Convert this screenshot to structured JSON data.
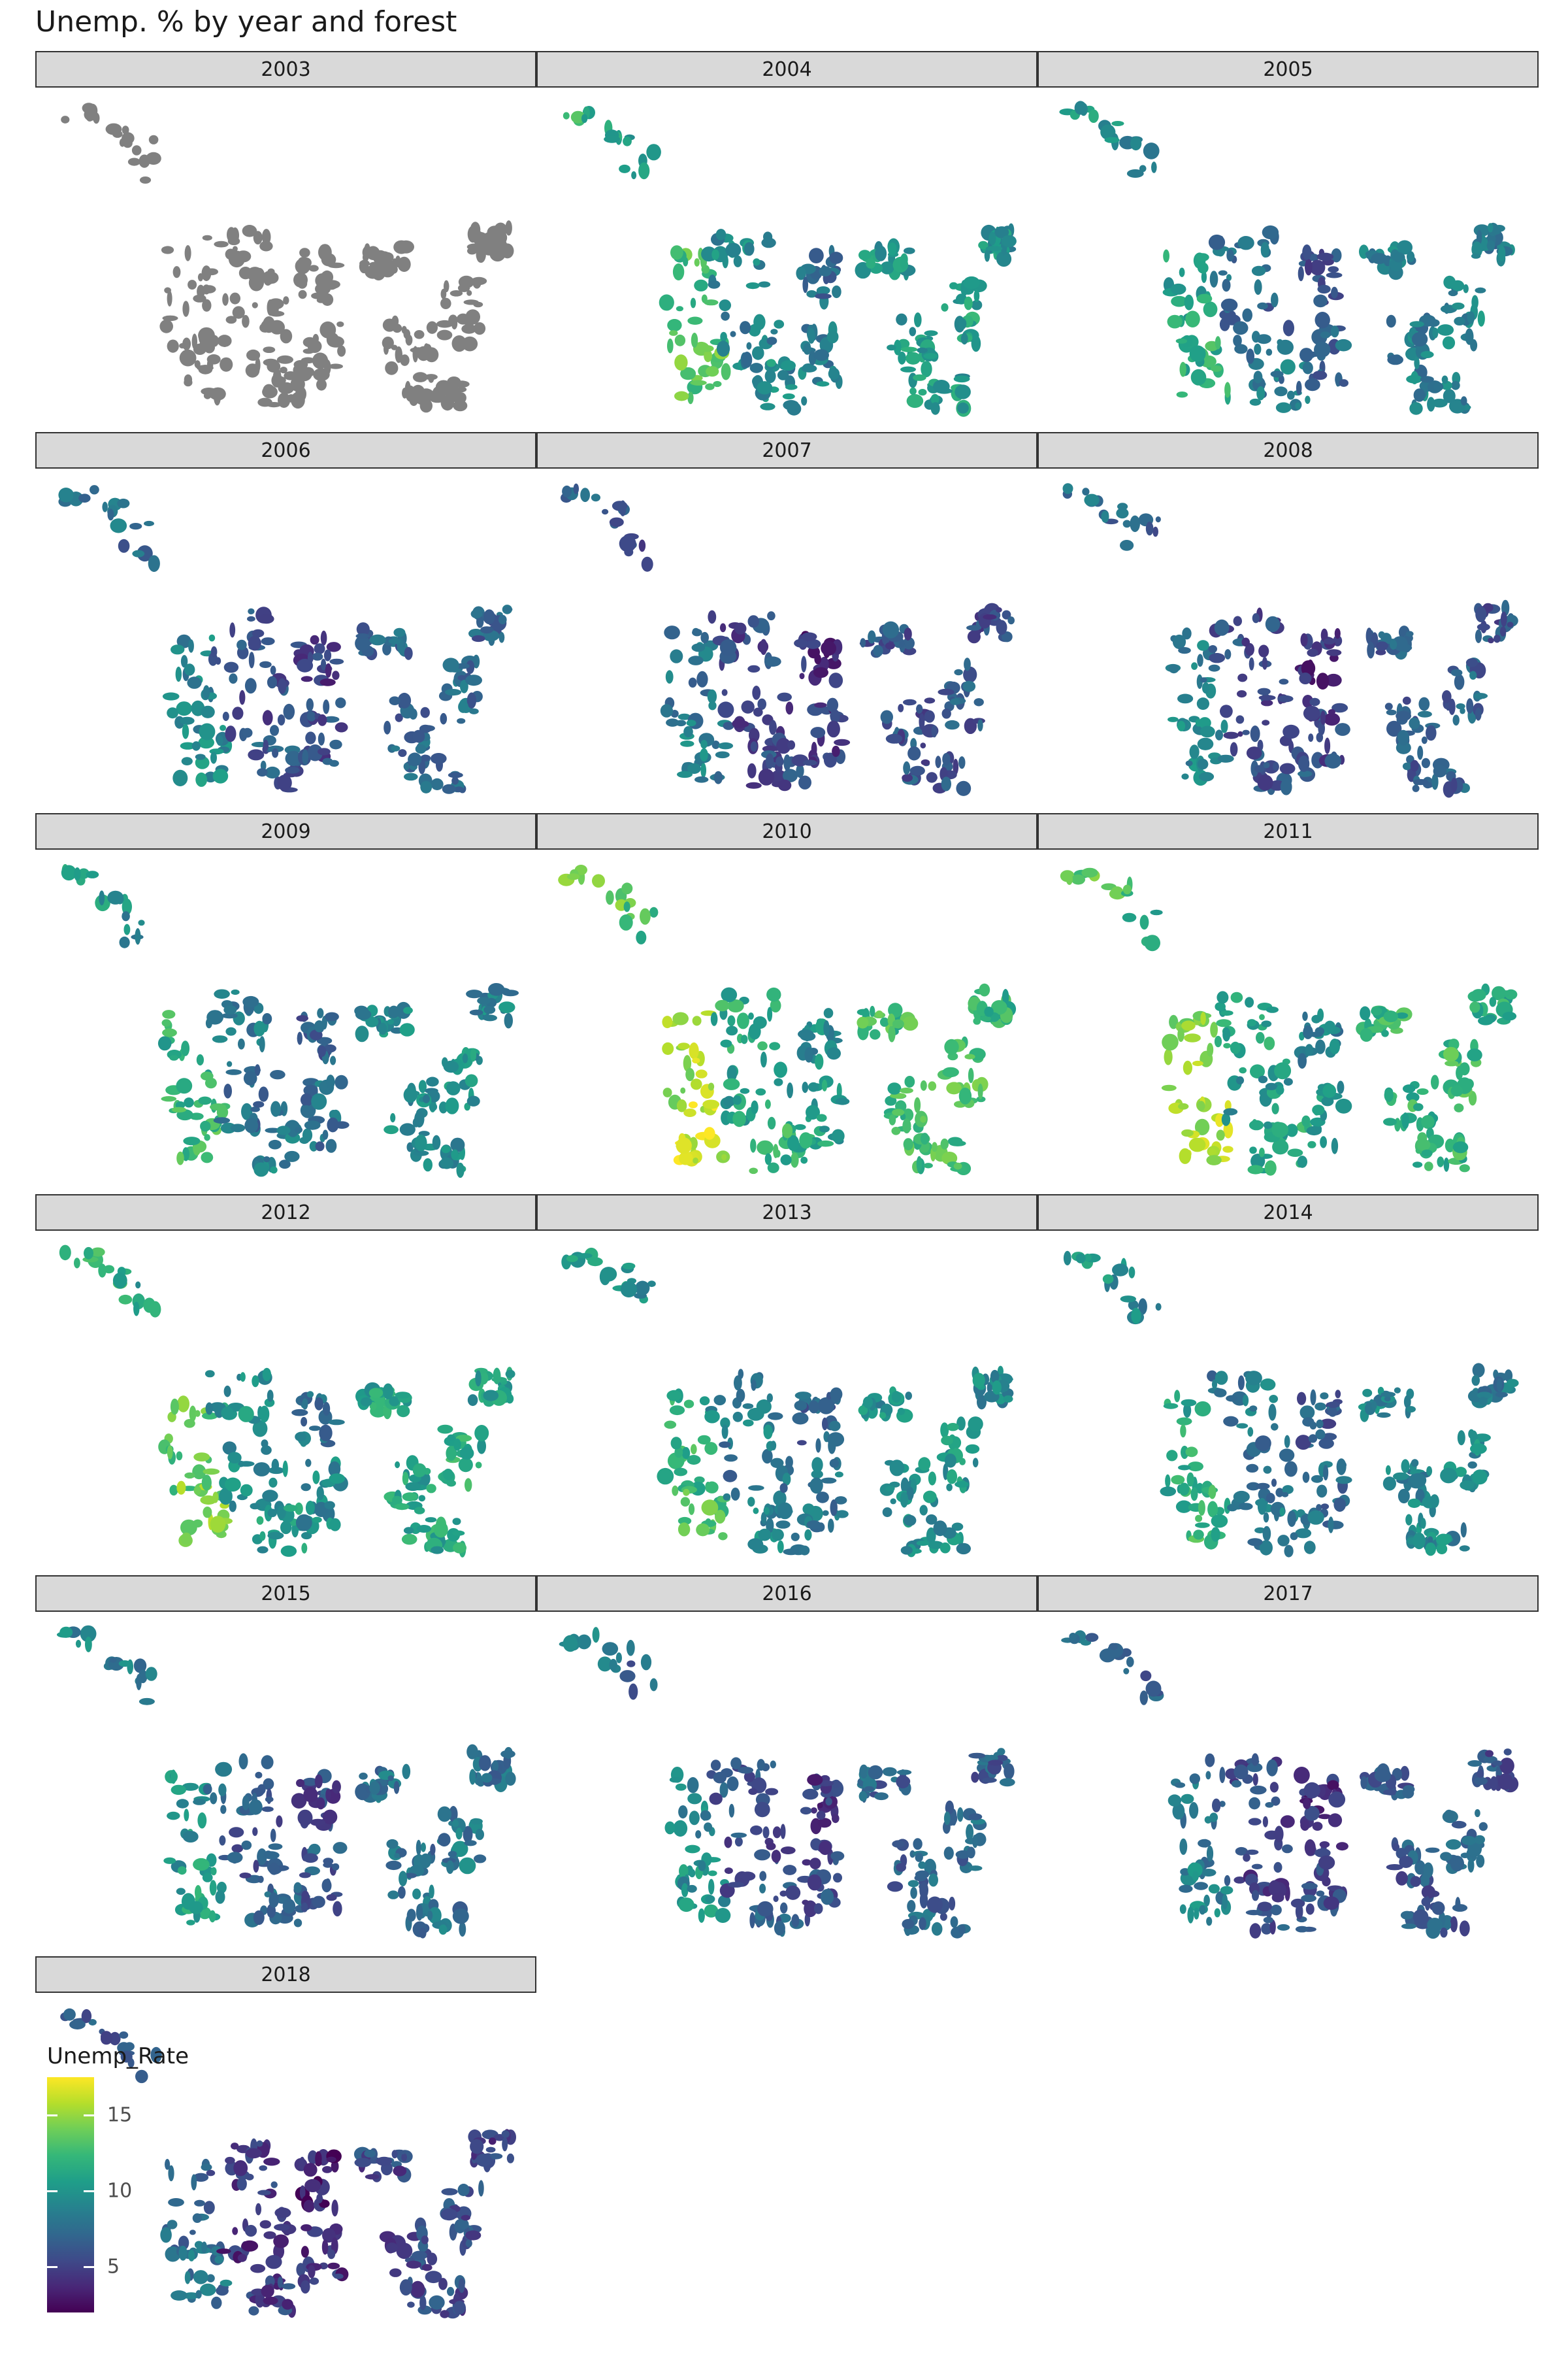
{
  "title": "Unemp. % by year and forest",
  "chart_data": {
    "type": "choropleth-map-facets",
    "facet_variable": "year",
    "facets": [
      {
        "year": "2003",
        "level": null
      },
      {
        "year": "2004",
        "level": 0.48
      },
      {
        "year": "2005",
        "level": 0.38
      },
      {
        "year": "2006",
        "level": 0.28
      },
      {
        "year": "2007",
        "level": 0.22
      },
      {
        "year": "2008",
        "level": 0.25
      },
      {
        "year": "2009",
        "level": 0.42
      },
      {
        "year": "2010",
        "level": 0.62
      },
      {
        "year": "2011",
        "level": 0.58
      },
      {
        "year": "2012",
        "level": 0.52
      },
      {
        "year": "2013",
        "level": 0.44
      },
      {
        "year": "2014",
        "level": 0.4
      },
      {
        "year": "2015",
        "level": 0.33
      },
      {
        "year": "2016",
        "level": 0.28
      },
      {
        "year": "2017",
        "level": 0.24
      },
      {
        "year": "2018",
        "level": 0.18
      }
    ],
    "legend": {
      "title": "Unemp_Rate",
      "ticks": [
        5,
        10,
        15
      ],
      "range": [
        2,
        17.5
      ],
      "scale": "viridis"
    },
    "missing_color": "#808080"
  },
  "colors": {
    "strip_fill": "#d9d9d9",
    "strip_border": "#333333",
    "viridis": [
      "#440154",
      "#482878",
      "#3e4a89",
      "#31688e",
      "#26828e",
      "#1f9e89",
      "#35b779",
      "#6ece58",
      "#b5de2b",
      "#fde725"
    ]
  }
}
